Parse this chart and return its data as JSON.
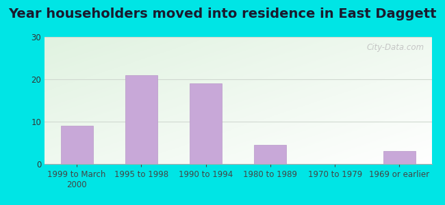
{
  "title": "Year householders moved into residence in East Daggett",
  "categories": [
    "1999 to March\n2000",
    "1995 to 1998",
    "1990 to 1994",
    "1980 to 1989",
    "1970 to 1979",
    "1969 or earlier"
  ],
  "values": [
    9,
    21,
    19,
    4.5,
    0,
    3
  ],
  "bar_color": "#c8a8d8",
  "bar_edgecolor": "#b898c8",
  "ylim": [
    0,
    30
  ],
  "yticks": [
    0,
    10,
    20,
    30
  ],
  "outer_bg": "#00e5e5",
  "title_fontsize": 14,
  "tick_fontsize": 8.5,
  "watermark": "City-Data.com",
  "grid_color": "#d0d8d0"
}
